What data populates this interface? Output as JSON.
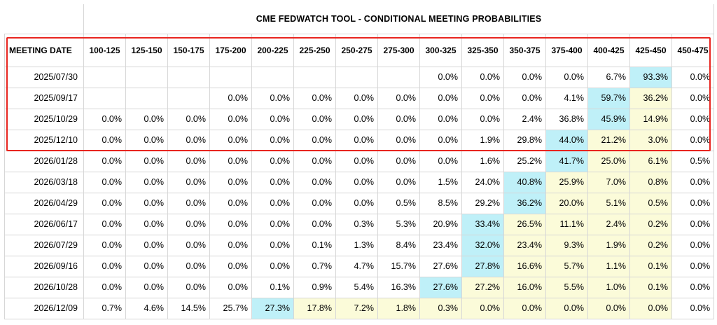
{
  "title": "CME FEDWATCH TOOL - CONDITIONAL MEETING PROBABILITIES",
  "date_header": "MEETING DATE",
  "colors": {
    "highlight_border": "#e8251f",
    "max_cell": "#bff0f8",
    "secondary_cell": "#fbfbd9",
    "grid": "#d6d6d6"
  },
  "chart_data": {
    "type": "table",
    "title": "CME FEDWATCH TOOL - CONDITIONAL MEETING PROBABILITIES",
    "columns": [
      "100-125",
      "125-150",
      "150-175",
      "175-200",
      "200-225",
      "225-250",
      "250-275",
      "275-300",
      "300-325",
      "325-350",
      "350-375",
      "375-400",
      "400-425",
      "425-450",
      "450-475"
    ],
    "rows": [
      {
        "date": "2025/07/30",
        "cells": [
          {
            "v": "",
            "c": ""
          },
          {
            "v": "",
            "c": ""
          },
          {
            "v": "",
            "c": ""
          },
          {
            "v": "",
            "c": ""
          },
          {
            "v": "",
            "c": ""
          },
          {
            "v": "",
            "c": ""
          },
          {
            "v": "",
            "c": ""
          },
          {
            "v": "",
            "c": ""
          },
          {
            "v": "0.0%",
            "c": ""
          },
          {
            "v": "0.0%",
            "c": ""
          },
          {
            "v": "0.0%",
            "c": ""
          },
          {
            "v": "0.0%",
            "c": ""
          },
          {
            "v": "6.7%",
            "c": ""
          },
          {
            "v": "93.3%",
            "c": "cyan"
          },
          {
            "v": "0.0%",
            "c": ""
          }
        ]
      },
      {
        "date": "2025/09/17",
        "cells": [
          {
            "v": "",
            "c": ""
          },
          {
            "v": "",
            "c": ""
          },
          {
            "v": "",
            "c": ""
          },
          {
            "v": "0.0%",
            "c": ""
          },
          {
            "v": "0.0%",
            "c": ""
          },
          {
            "v": "0.0%",
            "c": ""
          },
          {
            "v": "0.0%",
            "c": ""
          },
          {
            "v": "0.0%",
            "c": ""
          },
          {
            "v": "0.0%",
            "c": ""
          },
          {
            "v": "0.0%",
            "c": ""
          },
          {
            "v": "0.0%",
            "c": ""
          },
          {
            "v": "4.1%",
            "c": ""
          },
          {
            "v": "59.7%",
            "c": "cyan"
          },
          {
            "v": "36.2%",
            "c": "yellow"
          },
          {
            "v": "0.0%",
            "c": ""
          }
        ]
      },
      {
        "date": "2025/10/29",
        "cells": [
          {
            "v": "0.0%",
            "c": ""
          },
          {
            "v": "0.0%",
            "c": ""
          },
          {
            "v": "0.0%",
            "c": ""
          },
          {
            "v": "0.0%",
            "c": ""
          },
          {
            "v": "0.0%",
            "c": ""
          },
          {
            "v": "0.0%",
            "c": ""
          },
          {
            "v": "0.0%",
            "c": ""
          },
          {
            "v": "0.0%",
            "c": ""
          },
          {
            "v": "0.0%",
            "c": ""
          },
          {
            "v": "0.0%",
            "c": ""
          },
          {
            "v": "2.4%",
            "c": ""
          },
          {
            "v": "36.8%",
            "c": ""
          },
          {
            "v": "45.9%",
            "c": "cyan"
          },
          {
            "v": "14.9%",
            "c": "yellow"
          },
          {
            "v": "0.0%",
            "c": ""
          }
        ]
      },
      {
        "date": "2025/12/10",
        "cells": [
          {
            "v": "0.0%",
            "c": ""
          },
          {
            "v": "0.0%",
            "c": ""
          },
          {
            "v": "0.0%",
            "c": ""
          },
          {
            "v": "0.0%",
            "c": ""
          },
          {
            "v": "0.0%",
            "c": ""
          },
          {
            "v": "0.0%",
            "c": ""
          },
          {
            "v": "0.0%",
            "c": ""
          },
          {
            "v": "0.0%",
            "c": ""
          },
          {
            "v": "0.0%",
            "c": ""
          },
          {
            "v": "1.9%",
            "c": ""
          },
          {
            "v": "29.8%",
            "c": ""
          },
          {
            "v": "44.0%",
            "c": "cyan"
          },
          {
            "v": "21.2%",
            "c": "yellow"
          },
          {
            "v": "3.0%",
            "c": "yellow"
          },
          {
            "v": "0.0%",
            "c": ""
          }
        ]
      },
      {
        "date": "2026/01/28",
        "cells": [
          {
            "v": "0.0%",
            "c": ""
          },
          {
            "v": "0.0%",
            "c": ""
          },
          {
            "v": "0.0%",
            "c": ""
          },
          {
            "v": "0.0%",
            "c": ""
          },
          {
            "v": "0.0%",
            "c": ""
          },
          {
            "v": "0.0%",
            "c": ""
          },
          {
            "v": "0.0%",
            "c": ""
          },
          {
            "v": "0.0%",
            "c": ""
          },
          {
            "v": "0.0%",
            "c": ""
          },
          {
            "v": "1.6%",
            "c": ""
          },
          {
            "v": "25.2%",
            "c": ""
          },
          {
            "v": "41.7%",
            "c": "cyan"
          },
          {
            "v": "25.0%",
            "c": "yellow"
          },
          {
            "v": "6.1%",
            "c": "yellow"
          },
          {
            "v": "0.5%",
            "c": ""
          }
        ]
      },
      {
        "date": "2026/03/18",
        "cells": [
          {
            "v": "0.0%",
            "c": ""
          },
          {
            "v": "0.0%",
            "c": ""
          },
          {
            "v": "0.0%",
            "c": ""
          },
          {
            "v": "0.0%",
            "c": ""
          },
          {
            "v": "0.0%",
            "c": ""
          },
          {
            "v": "0.0%",
            "c": ""
          },
          {
            "v": "0.0%",
            "c": ""
          },
          {
            "v": "0.0%",
            "c": ""
          },
          {
            "v": "1.5%",
            "c": ""
          },
          {
            "v": "24.0%",
            "c": ""
          },
          {
            "v": "40.8%",
            "c": "cyan"
          },
          {
            "v": "25.9%",
            "c": "yellow"
          },
          {
            "v": "7.0%",
            "c": "yellow"
          },
          {
            "v": "0.8%",
            "c": "yellow"
          },
          {
            "v": "0.0%",
            "c": ""
          }
        ]
      },
      {
        "date": "2026/04/29",
        "cells": [
          {
            "v": "0.0%",
            "c": ""
          },
          {
            "v": "0.0%",
            "c": ""
          },
          {
            "v": "0.0%",
            "c": ""
          },
          {
            "v": "0.0%",
            "c": ""
          },
          {
            "v": "0.0%",
            "c": ""
          },
          {
            "v": "0.0%",
            "c": ""
          },
          {
            "v": "0.0%",
            "c": ""
          },
          {
            "v": "0.5%",
            "c": ""
          },
          {
            "v": "8.5%",
            "c": ""
          },
          {
            "v": "29.2%",
            "c": ""
          },
          {
            "v": "36.2%",
            "c": "cyan"
          },
          {
            "v": "20.0%",
            "c": "yellow"
          },
          {
            "v": "5.1%",
            "c": "yellow"
          },
          {
            "v": "0.5%",
            "c": "yellow"
          },
          {
            "v": "0.0%",
            "c": ""
          }
        ]
      },
      {
        "date": "2026/06/17",
        "cells": [
          {
            "v": "0.0%",
            "c": ""
          },
          {
            "v": "0.0%",
            "c": ""
          },
          {
            "v": "0.0%",
            "c": ""
          },
          {
            "v": "0.0%",
            "c": ""
          },
          {
            "v": "0.0%",
            "c": ""
          },
          {
            "v": "0.0%",
            "c": ""
          },
          {
            "v": "0.3%",
            "c": ""
          },
          {
            "v": "5.3%",
            "c": ""
          },
          {
            "v": "20.9%",
            "c": ""
          },
          {
            "v": "33.4%",
            "c": "cyan"
          },
          {
            "v": "26.5%",
            "c": "yellow"
          },
          {
            "v": "11.1%",
            "c": "yellow"
          },
          {
            "v": "2.4%",
            "c": "yellow"
          },
          {
            "v": "0.2%",
            "c": "yellow"
          },
          {
            "v": "0.0%",
            "c": ""
          }
        ]
      },
      {
        "date": "2026/07/29",
        "cells": [
          {
            "v": "0.0%",
            "c": ""
          },
          {
            "v": "0.0%",
            "c": ""
          },
          {
            "v": "0.0%",
            "c": ""
          },
          {
            "v": "0.0%",
            "c": ""
          },
          {
            "v": "0.0%",
            "c": ""
          },
          {
            "v": "0.1%",
            "c": ""
          },
          {
            "v": "1.3%",
            "c": ""
          },
          {
            "v": "8.4%",
            "c": ""
          },
          {
            "v": "23.4%",
            "c": ""
          },
          {
            "v": "32.0%",
            "c": "cyan"
          },
          {
            "v": "23.4%",
            "c": "yellow"
          },
          {
            "v": "9.3%",
            "c": "yellow"
          },
          {
            "v": "1.9%",
            "c": "yellow"
          },
          {
            "v": "0.2%",
            "c": "yellow"
          },
          {
            "v": "0.0%",
            "c": ""
          }
        ]
      },
      {
        "date": "2026/09/16",
        "cells": [
          {
            "v": "0.0%",
            "c": ""
          },
          {
            "v": "0.0%",
            "c": ""
          },
          {
            "v": "0.0%",
            "c": ""
          },
          {
            "v": "0.0%",
            "c": ""
          },
          {
            "v": "0.0%",
            "c": ""
          },
          {
            "v": "0.7%",
            "c": ""
          },
          {
            "v": "4.7%",
            "c": ""
          },
          {
            "v": "15.7%",
            "c": ""
          },
          {
            "v": "27.6%",
            "c": ""
          },
          {
            "v": "27.8%",
            "c": "cyan"
          },
          {
            "v": "16.6%",
            "c": "yellow"
          },
          {
            "v": "5.7%",
            "c": "yellow"
          },
          {
            "v": "1.1%",
            "c": "yellow"
          },
          {
            "v": "0.1%",
            "c": "yellow"
          },
          {
            "v": "0.0%",
            "c": ""
          }
        ]
      },
      {
        "date": "2026/10/28",
        "cells": [
          {
            "v": "0.0%",
            "c": ""
          },
          {
            "v": "0.0%",
            "c": ""
          },
          {
            "v": "0.0%",
            "c": ""
          },
          {
            "v": "0.0%",
            "c": ""
          },
          {
            "v": "0.1%",
            "c": ""
          },
          {
            "v": "0.9%",
            "c": ""
          },
          {
            "v": "5.4%",
            "c": ""
          },
          {
            "v": "16.3%",
            "c": ""
          },
          {
            "v": "27.6%",
            "c": "cyan"
          },
          {
            "v": "27.2%",
            "c": "yellow"
          },
          {
            "v": "16.0%",
            "c": "yellow"
          },
          {
            "v": "5.5%",
            "c": "yellow"
          },
          {
            "v": "1.0%",
            "c": "yellow"
          },
          {
            "v": "0.1%",
            "c": "yellow"
          },
          {
            "v": "0.0%",
            "c": ""
          }
        ]
      },
      {
        "date": "2026/12/09",
        "cells": [
          {
            "v": "0.7%",
            "c": ""
          },
          {
            "v": "4.6%",
            "c": ""
          },
          {
            "v": "14.5%",
            "c": ""
          },
          {
            "v": "25.7%",
            "c": ""
          },
          {
            "v": "27.3%",
            "c": "cyan"
          },
          {
            "v": "17.8%",
            "c": "yellow"
          },
          {
            "v": "7.2%",
            "c": "yellow"
          },
          {
            "v": "1.8%",
            "c": "yellow"
          },
          {
            "v": "0.3%",
            "c": "yellow"
          },
          {
            "v": "0.0%",
            "c": "yellow"
          },
          {
            "v": "0.0%",
            "c": "yellow"
          },
          {
            "v": "0.0%",
            "c": "yellow"
          },
          {
            "v": "0.0%",
            "c": "yellow"
          },
          {
            "v": "0.0%",
            "c": "yellow"
          },
          {
            "v": "0.0%",
            "c": ""
          }
        ]
      }
    ],
    "highlighted_rows": [
      "2025/07/30",
      "2025/09/17",
      "2025/10/29",
      "2025/12/10"
    ]
  }
}
